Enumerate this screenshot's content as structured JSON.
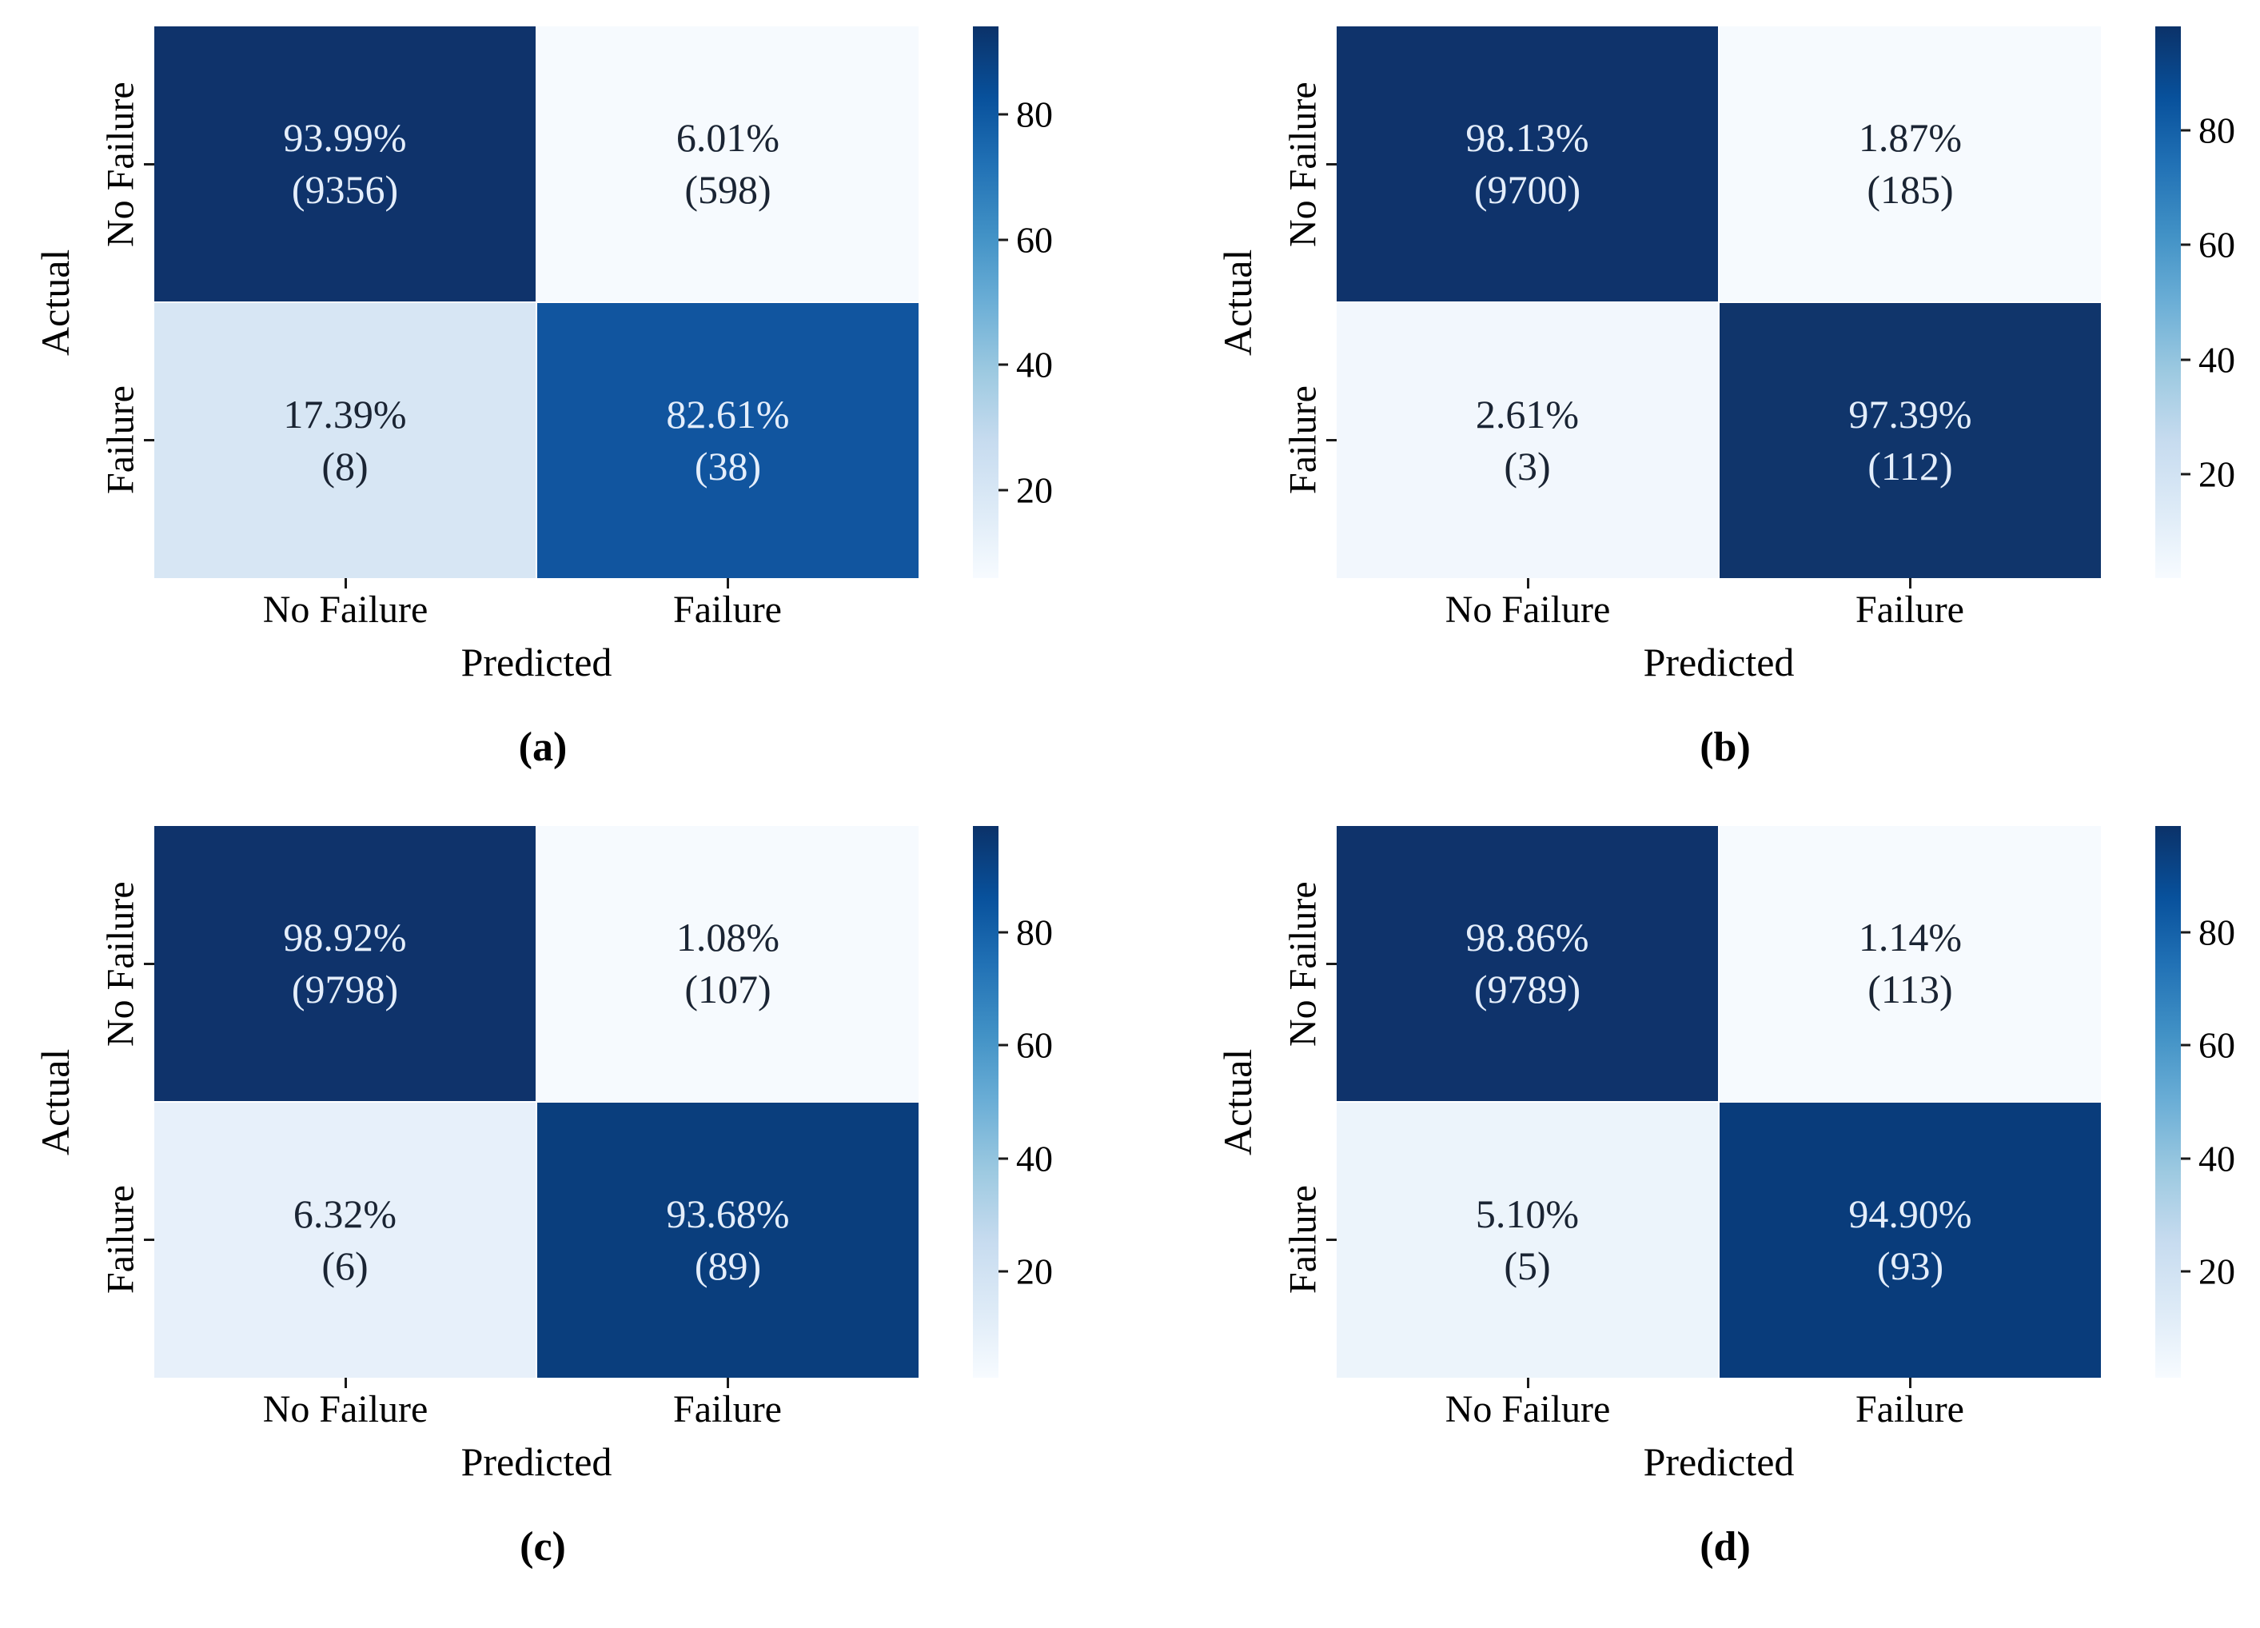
{
  "figure": {
    "axes": {
      "x_label": "Predicted",
      "y_label": "Actual",
      "x_tick_labels": [
        "No Failure",
        "Failure"
      ],
      "y_tick_labels": [
        "No Failure",
        "Failure"
      ]
    },
    "colorbar_tick_labels": [
      "80",
      "60",
      "40",
      "20"
    ]
  },
  "colors": {
    "dark_cell": "#0f336b",
    "mid_cell": "#11559f",
    "light_cell": "#f6fafe",
    "dark_text": "#1a2433",
    "light_text": "#e4eefb",
    "tick_mark": "#1a1a1a",
    "colormap": "Blues"
  },
  "panels": [
    {
      "caption": "(a)",
      "vmin": 6.01,
      "vmax": 93.99,
      "cells": [
        {
          "pct": "93.99%",
          "count": "(9356)",
          "bg": "#0f336b",
          "fg": "light"
        },
        {
          "pct": "6.01%",
          "count": "(598)",
          "bg": "#f6fafe",
          "fg": "dark"
        },
        {
          "pct": "17.39%",
          "count": "(8)",
          "bg": "#d7e6f4",
          "fg": "dark"
        },
        {
          "pct": "82.61%",
          "count": "(38)",
          "bg": "#11559f",
          "fg": "light"
        }
      ]
    },
    {
      "caption": "(b)",
      "vmin": 1.87,
      "vmax": 98.13,
      "cells": [
        {
          "pct": "98.13%",
          "count": "(9700)",
          "bg": "#0f336b",
          "fg": "light"
        },
        {
          "pct": "1.87%",
          "count": "(185)",
          "bg": "#f6fafe",
          "fg": "dark"
        },
        {
          "pct": "2.61%",
          "count": "(3)",
          "bg": "#f2f7fd",
          "fg": "dark"
        },
        {
          "pct": "97.39%",
          "count": "(112)",
          "bg": "#10356b",
          "fg": "light"
        }
      ]
    },
    {
      "caption": "(c)",
      "vmin": 1.08,
      "vmax": 98.92,
      "cells": [
        {
          "pct": "98.92%",
          "count": "(9798)",
          "bg": "#0f336b",
          "fg": "light"
        },
        {
          "pct": "1.08%",
          "count": "(107)",
          "bg": "#f6fafe",
          "fg": "dark"
        },
        {
          "pct": "6.32%",
          "count": "(6)",
          "bg": "#e7f0fa",
          "fg": "dark"
        },
        {
          "pct": "93.68%",
          "count": "(89)",
          "bg": "#0a3e7d",
          "fg": "light"
        }
      ]
    },
    {
      "caption": "(d)",
      "vmin": 1.14,
      "vmax": 98.86,
      "cells": [
        {
          "pct": "98.86%",
          "count": "(9789)",
          "bg": "#0f336b",
          "fg": "light"
        },
        {
          "pct": "1.14%",
          "count": "(113)",
          "bg": "#f6fafe",
          "fg": "dark"
        },
        {
          "pct": "5.10%",
          "count": "(5)",
          "bg": "#ecf4fb",
          "fg": "dark"
        },
        {
          "pct": "94.90%",
          "count": "(93)",
          "bg": "#093c7b",
          "fg": "light"
        }
      ]
    }
  ],
  "chart_data": [
    {
      "type": "heatmap",
      "title": "(a)",
      "xlabel": "Predicted",
      "ylabel": "Actual",
      "x_categories": [
        "No Failure",
        "Failure"
      ],
      "y_categories": [
        "No Failure",
        "Failure"
      ],
      "values_percent": [
        [
          93.99,
          6.01
        ],
        [
          17.39,
          82.61
        ]
      ],
      "counts": [
        [
          9356,
          598
        ],
        [
          8,
          38
        ]
      ],
      "colormap": "Blues",
      "colorbar_ticks": [
        20,
        40,
        60,
        80
      ],
      "color_scale_range": [
        6.01,
        93.99
      ],
      "legend_position": "right",
      "grid": false
    },
    {
      "type": "heatmap",
      "title": "(b)",
      "xlabel": "Predicted",
      "ylabel": "Actual",
      "x_categories": [
        "No Failure",
        "Failure"
      ],
      "y_categories": [
        "No Failure",
        "Failure"
      ],
      "values_percent": [
        [
          98.13,
          1.87
        ],
        [
          2.61,
          97.39
        ]
      ],
      "counts": [
        [
          9700,
          185
        ],
        [
          3,
          112
        ]
      ],
      "colormap": "Blues",
      "colorbar_ticks": [
        20,
        40,
        60,
        80
      ],
      "color_scale_range": [
        1.87,
        98.13
      ],
      "legend_position": "right",
      "grid": false
    },
    {
      "type": "heatmap",
      "title": "(c)",
      "xlabel": "Predicted",
      "ylabel": "Actual",
      "x_categories": [
        "No Failure",
        "Failure"
      ],
      "y_categories": [
        "No Failure",
        "Failure"
      ],
      "values_percent": [
        [
          98.92,
          1.08
        ],
        [
          6.32,
          93.68
        ]
      ],
      "counts": [
        [
          9798,
          107
        ],
        [
          6,
          89
        ]
      ],
      "colormap": "Blues",
      "colorbar_ticks": [
        20,
        40,
        60,
        80
      ],
      "color_scale_range": [
        1.08,
        98.92
      ],
      "legend_position": "right",
      "grid": false
    },
    {
      "type": "heatmap",
      "title": "(d)",
      "xlabel": "Predicted",
      "ylabel": "Actual",
      "x_categories": [
        "No Failure",
        "Failure"
      ],
      "y_categories": [
        "No Failure",
        "Failure"
      ],
      "values_percent": [
        [
          98.86,
          1.14
        ],
        [
          5.1,
          94.9
        ]
      ],
      "counts": [
        [
          9789,
          113
        ],
        [
          5,
          93
        ]
      ],
      "colormap": "Blues",
      "colorbar_ticks": [
        20,
        40,
        60,
        80
      ],
      "color_scale_range": [
        1.14,
        98.86
      ],
      "legend_position": "right",
      "grid": false
    }
  ]
}
